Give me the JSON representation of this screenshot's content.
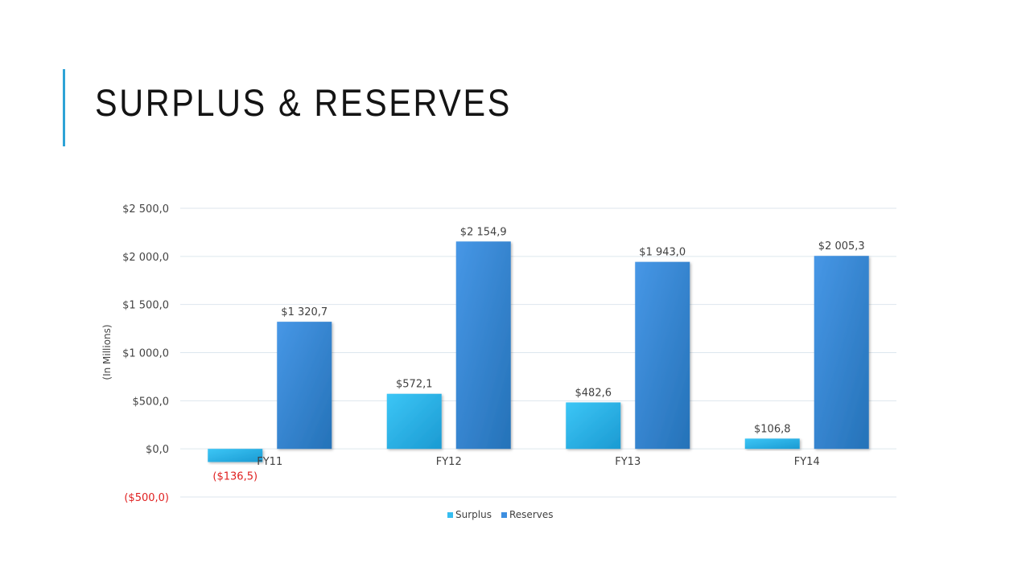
{
  "slide": {
    "title": "SURPLUS & RESERVES"
  },
  "colors": {
    "accent": "#2ea3d6",
    "surplus": "#36bdf0",
    "reserves": "#3d8fe0",
    "negative": "#e02020",
    "grid": "#dde6ee"
  },
  "chart_data": {
    "type": "bar",
    "categories": [
      "FY11",
      "FY12",
      "FY13",
      "FY14"
    ],
    "series": [
      {
        "name": "Surplus",
        "values": [
          -136.5,
          572.1,
          482.6,
          106.8
        ],
        "labels": [
          "($136,5)",
          "$572,1",
          "$482,6",
          "$106,8"
        ]
      },
      {
        "name": "Reserves",
        "values": [
          1320.7,
          2154.9,
          1943.0,
          2005.3
        ],
        "labels": [
          "$1 320,7",
          "$2 154,9",
          "$1 943,0",
          "$2 005,3"
        ]
      }
    ],
    "ylabel": "(In Millions)",
    "ylim": [
      -500,
      2500
    ],
    "yticks": [
      2500,
      2000,
      1500,
      1000,
      500,
      0,
      -500
    ],
    "ytick_labels": [
      "$2 500,0",
      "$2 000,0",
      "$1 500,0",
      "$1 000,0",
      "$500,0",
      "$0,0",
      "($500,0)"
    ],
    "grid": true,
    "legend": "bottom"
  }
}
